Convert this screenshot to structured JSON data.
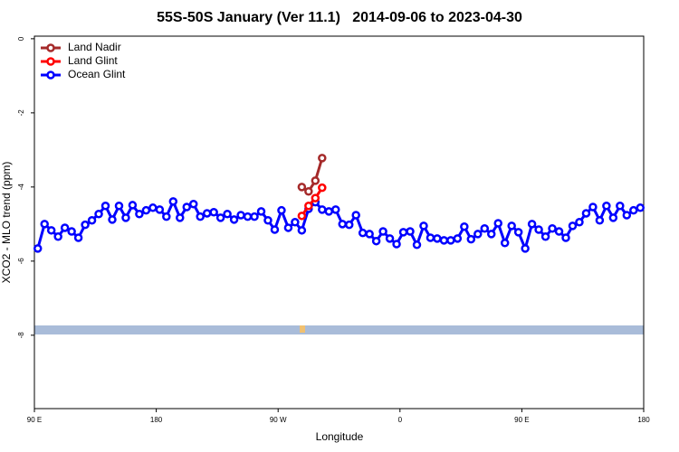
{
  "chart_data": {
    "type": "line",
    "title": "55S-50S January (Ver 11.1)   2014-09-06 to 2023-04-30",
    "x_label": "Longitude",
    "y_label": "XCO2 - MLO trend (ppm)",
    "xlim": [
      90,
      540
    ],
    "xticks": [
      {
        "value": 90,
        "label": "90 E"
      },
      {
        "value": 180,
        "label": "180"
      },
      {
        "value": 270,
        "label": "90 W"
      },
      {
        "value": 360,
        "label": "0"
      },
      {
        "value": 450,
        "label": "90 E"
      },
      {
        "value": 540,
        "label": "180"
      }
    ],
    "ylim": [
      -9.98,
      0.07
    ],
    "yticks": [
      0,
      -2,
      -4,
      -6,
      -8
    ],
    "legend": "upper left",
    "series": [
      {
        "name": "Land Nadir",
        "color": "#a52a2a",
        "x": [
          287.5,
          292.5,
          297.5,
          302.5
        ],
        "values": [
          -4.0,
          -4.12,
          -3.83,
          -3.22
        ]
      },
      {
        "name": "Land Glint",
        "color": "#ff0000",
        "x": [
          287.5,
          292.5,
          297.5,
          302.5
        ],
        "values": [
          -4.78,
          -4.51,
          -4.3,
          -4.02
        ]
      },
      {
        "name": "Ocean Glint",
        "color": "#0000ff",
        "x": [
          92.5,
          97.5,
          102.5,
          107.5,
          112.5,
          117.5,
          122.5,
          127.5,
          132.5,
          137.5,
          142.5,
          147.5,
          152.5,
          157.5,
          162.5,
          167.5,
          172.5,
          177.5,
          182.5,
          187.5,
          192.5,
          197.5,
          202.5,
          207.5,
          212.5,
          217.5,
          222.5,
          227.5,
          232.5,
          237.5,
          242.5,
          247.5,
          252.5,
          257.5,
          262.5,
          267.5,
          272.5,
          277.5,
          282.5,
          287.5,
          292.5,
          297.5,
          302.5,
          307.5,
          312.5,
          317.5,
          322.5,
          327.5,
          332.5,
          337.5,
          342.5,
          347.5,
          352.5,
          357.5,
          362.5,
          367.5,
          372.5,
          377.5,
          382.5,
          387.5,
          392.5,
          397.5,
          402.5,
          407.5,
          412.5,
          417.5,
          422.5,
          427.5,
          432.5,
          437.5,
          442.5,
          447.5,
          452.5,
          457.5,
          462.5,
          467.5,
          472.5,
          477.5,
          482.5,
          487.5,
          492.5,
          497.5,
          502.5,
          507.5,
          512.5,
          517.5,
          522.5,
          527.5,
          532.5,
          537.5
        ],
        "values": [
          -5.66,
          -5.0,
          -5.17,
          -5.34,
          -5.1,
          -5.2,
          -5.37,
          -5.02,
          -4.9,
          -4.73,
          -4.51,
          -4.88,
          -4.51,
          -4.83,
          -4.49,
          -4.73,
          -4.63,
          -4.56,
          -4.61,
          -4.8,
          -4.39,
          -4.83,
          -4.54,
          -4.46,
          -4.8,
          -4.71,
          -4.68,
          -4.83,
          -4.73,
          -4.88,
          -4.76,
          -4.8,
          -4.8,
          -4.66,
          -4.9,
          -5.15,
          -4.63,
          -5.1,
          -4.95,
          -5.17,
          -4.59,
          -4.41,
          -4.61,
          -4.66,
          -4.61,
          -5.0,
          -5.02,
          -4.76,
          -5.24,
          -5.27,
          -5.46,
          -5.2,
          -5.39,
          -5.54,
          -5.22,
          -5.2,
          -5.56,
          -5.05,
          -5.37,
          -5.39,
          -5.44,
          -5.44,
          -5.39,
          -5.07,
          -5.41,
          -5.27,
          -5.12,
          -5.27,
          -4.98,
          -5.51,
          -5.05,
          -5.22,
          -5.66,
          -5.0,
          -5.15,
          -5.34,
          -5.12,
          -5.2,
          -5.37,
          -5.05,
          -4.95,
          -4.71,
          -4.54,
          -4.9,
          -4.51,
          -4.83,
          -4.51,
          -4.76,
          -4.63,
          -4.56
        ]
      }
    ]
  }
}
